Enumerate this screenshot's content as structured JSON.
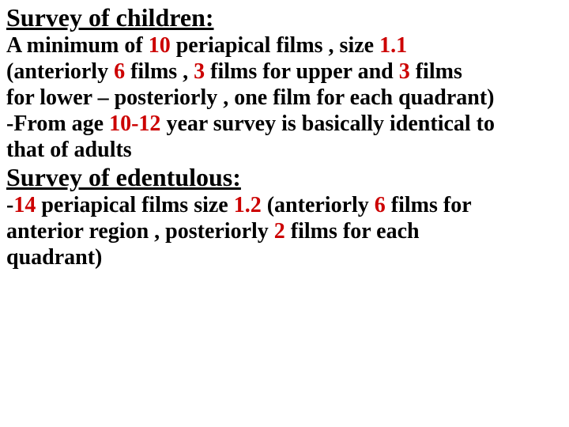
{
  "section1": {
    "heading": "Survey of children:",
    "line1_pre": "A  minimum of ",
    "line1_red1": "10",
    "line1_mid": " periapical films , size ",
    "line1_red2": "1.1",
    "line2_pre": "(anteriorly ",
    "line2_red1": "6",
    "line2_mid1": " films , ",
    "line2_red2": "3",
    "line2_mid2": " films for upper and ",
    "line2_red3": "3",
    "line2_end": " films",
    "line3": "for lower – posteriorly , one film for each quadrant)",
    "line4_pre": "-From age ",
    "line4_red": "10-12",
    "line4_end": " year survey is basically identical to",
    "line5": "that of adults"
  },
  "section2": {
    "heading": "Survey of edentulous:",
    "line1_pre": "-",
    "line1_red1": "14",
    "line1_mid1": " periapical films size ",
    "line1_red2": "1.2",
    "line1_mid2": " (anteriorly ",
    "line1_red3": "6",
    "line1_end": " films for",
    "line2_pre": "anterior region , posteriorly ",
    "line2_red": "2",
    "line2_end": " films for each",
    "line3": "quadrant)"
  },
  "colors": {
    "text": "#000000",
    "highlight": "#cc0000",
    "background": "#ffffff"
  },
  "fonts": {
    "heading_size": 32,
    "body_size": 28,
    "family": "Times New Roman"
  }
}
